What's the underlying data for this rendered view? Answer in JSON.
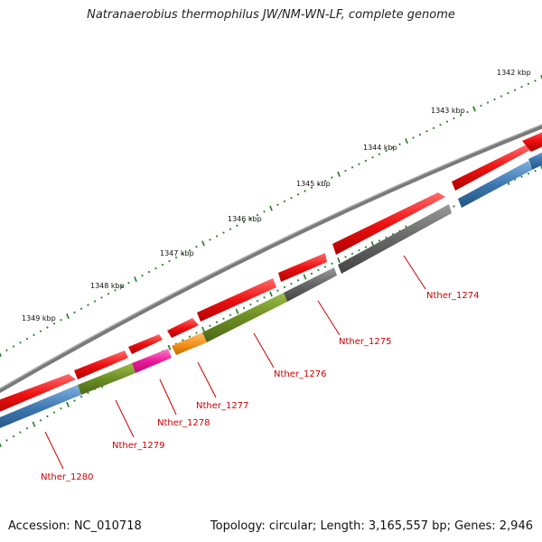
{
  "title": "Natranaerobius thermophilus JW/NM-WN-LF, complete genome",
  "footer": {
    "accession": "Accession: NC_010718",
    "summary": "Topology: circular; Length: 3,165,557 bp; Genes: 2,946"
  },
  "colors": {
    "backbone": "#7a7a7a",
    "tick": "#1f7a1f",
    "label": "#cc0000",
    "cds_red": "#ee1111",
    "blue": "#3d78b0",
    "olive": "#6b8e23",
    "gray": "#666666",
    "magenta": "#ee1a9a",
    "orange": "#f7941d"
  },
  "scale_labels": [
    "1342 kbp",
    "1343 kbp",
    "1344 kbp",
    "1345 kbp",
    "1346 kbp",
    "1347 kbp",
    "1348 kbp",
    "1349 kbp"
  ],
  "genes": [
    {
      "label": "Nther_1274",
      "color": "gray"
    },
    {
      "label": "Nther_1275",
      "color": "gray"
    },
    {
      "label": "Nther_1276",
      "color": "olive"
    },
    {
      "label": "Nther_1277",
      "color": "orange"
    },
    {
      "label": "Nther_1278",
      "color": "magenta"
    },
    {
      "label": "Nther_1279",
      "color": "olive"
    },
    {
      "label": "Nther_1280",
      "color": "blue"
    }
  ]
}
